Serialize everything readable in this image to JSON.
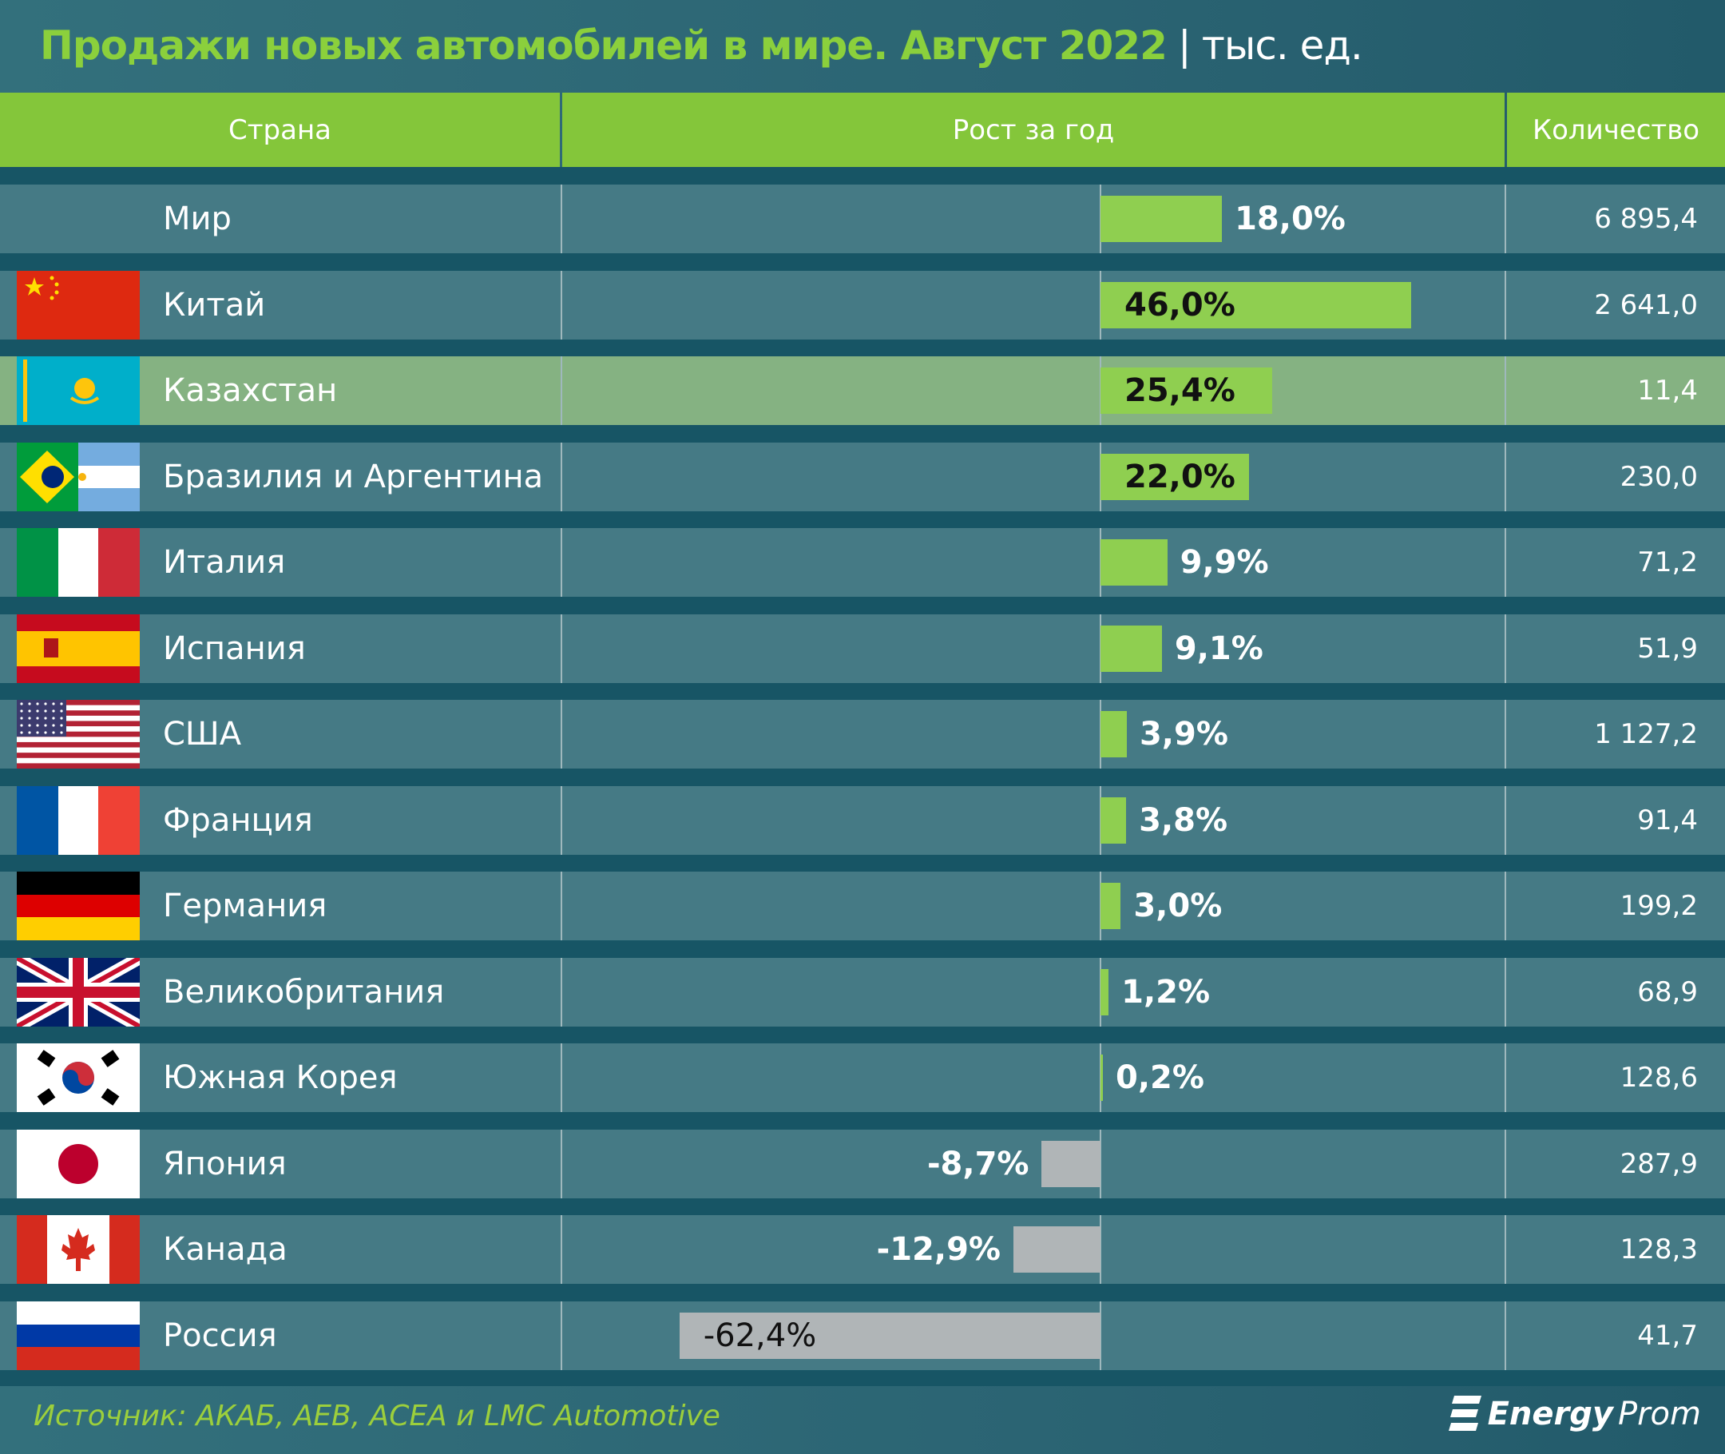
{
  "title": {
    "main": "Продажи новых автомобилей в мире. Август 2022",
    "separator": "|",
    "unit": "тыс. ед."
  },
  "header": {
    "country": "Страна",
    "growth": "Рост за год",
    "count": "Количество"
  },
  "colors": {
    "background": "#2e6a78",
    "header": "#84c63a",
    "positive_bar": "#8fcf50",
    "negative_bar": "#b0b5b7",
    "highlight_row": "#85b282",
    "title": "#8bd03c"
  },
  "chart_data": {
    "type": "bar",
    "orientation": "horizontal",
    "zero_axis": true,
    "categories": [
      "Мир",
      "Китай",
      "Казахстан",
      "Бразилия и Аргентина",
      "Италия",
      "Испания",
      "США",
      "Франция",
      "Германия",
      "Великобритания",
      "Южная Корея",
      "Япония",
      "Канада",
      "Россия"
    ],
    "series": [
      {
        "values": [
          18.0,
          46.0,
          25.4,
          22.0,
          9.9,
          9.1,
          3.9,
          3.8,
          3.0,
          1.2,
          0.2,
          -8.7,
          -12.9,
          -62.4
        ]
      }
    ],
    "value_labels": [
      "18,0%",
      "46,0%",
      "25,4%",
      "22,0%",
      "9,9%",
      "9,1%",
      "3,9%",
      "3,8%",
      "3,0%",
      "1,2%",
      "0,2%",
      "-8,7%",
      "-12,9%",
      "-62,4%"
    ],
    "counts": [
      "6 895,4",
      "2 641,0",
      "11,4",
      "230,0",
      "71,2",
      "51,9",
      "1 127,2",
      "91,4",
      "199,2",
      "68,9",
      "128,6",
      "287,9",
      "128,3",
      "41,7"
    ],
    "flags": [
      "",
      "flag-china-icon",
      "flag-kazakhstan-icon",
      "flag-brazil-argentina-icon",
      "flag-italy-icon",
      "flag-spain-icon",
      "flag-usa-icon",
      "flag-france-icon",
      "flag-germany-icon",
      "flag-uk-icon",
      "flag-south-korea-icon",
      "flag-japan-icon",
      "flag-canada-icon",
      "flag-russia-icon"
    ],
    "highlighted": "Казахстан"
  },
  "footer": {
    "source": "Источник: АКАБ, AEB, ACEA и LMC Automotive",
    "logo": {
      "energy": "Energy",
      "prom": "Prom"
    }
  }
}
